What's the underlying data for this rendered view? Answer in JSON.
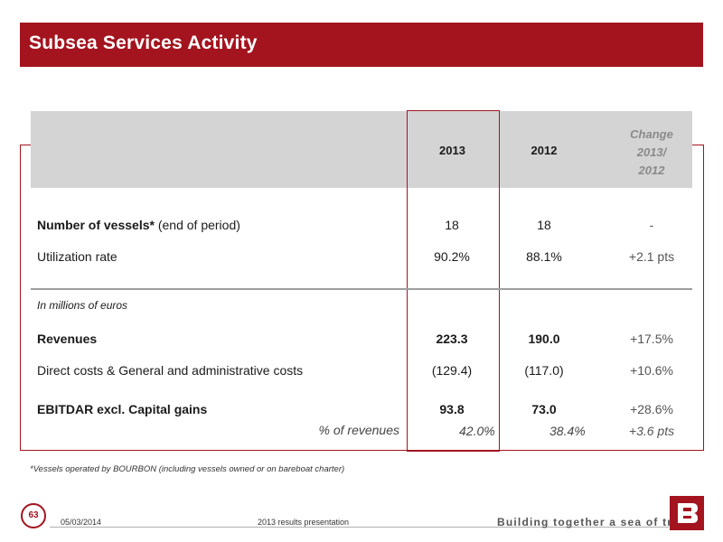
{
  "title": "Subsea Services Activity",
  "table": {
    "headers": {
      "y2013": "2013",
      "y2012": "2012",
      "change_line1": "Change",
      "change_line2": "2013/",
      "change_line3": "2012"
    },
    "rows": {
      "vessels": {
        "label_bold": "Number of vessels*",
        "label_rest": " (end of period)",
        "v2013": "18",
        "v2012": "18",
        "change": "-"
      },
      "utilization": {
        "label": "Utilization rate",
        "v2013": "90.2%",
        "v2012": "88.1%",
        "change": "+2.1 pts"
      },
      "units_note": "In millions of euros",
      "revenues": {
        "label": "Revenues",
        "v2013": "223.3",
        "v2012": "190.0",
        "change": "+17.5%"
      },
      "direct_costs": {
        "label": "Direct costs & General and administrative costs",
        "v2013": "(129.4)",
        "v2012": "(117.0)",
        "change": "+10.6%"
      },
      "ebitdar": {
        "label": "EBITDAR excl. Capital gains",
        "v2013": "93.8",
        "v2012": "73.0",
        "change": "+28.6%"
      },
      "pct_revenues": {
        "label": "% of revenues",
        "v2013": "42.0%",
        "v2012": "38.4%",
        "change": "+3.6 pts"
      }
    }
  },
  "footnote": "*Vessels operated by BOURBON (including vessels owned or on bareboat charter)",
  "footer": {
    "page_number": "63",
    "date": "05/03/2014",
    "presentation": "2013 results presentation",
    "tagline": "Building together a sea of trust"
  },
  "colors": {
    "brand_red": "#a3141f",
    "header_gray": "#d4d4d4"
  }
}
